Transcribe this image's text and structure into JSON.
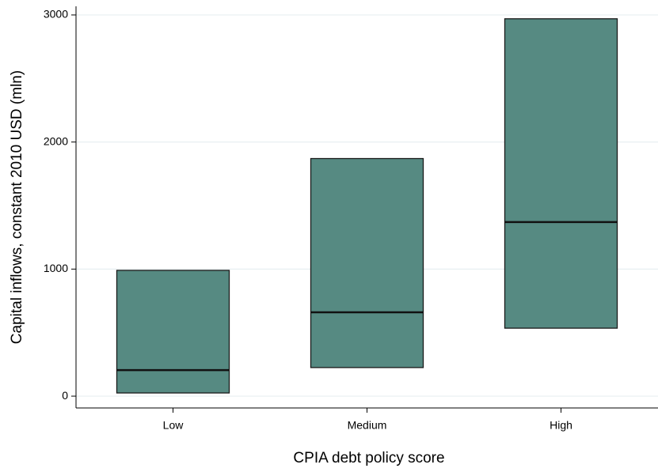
{
  "chart_data": {
    "type": "box",
    "x_label": "CPIA debt policy score",
    "y_label": "Capital inflows, constant 2010 USD (mln)",
    "categories": [
      "Low",
      "Medium",
      "High"
    ],
    "q1": [
      25,
      225,
      535
    ],
    "median": [
      205,
      660,
      1370
    ],
    "q3": [
      990,
      1870,
      2970
    ],
    "color": "#568a82",
    "ylim": [
      -93,
      3068
    ],
    "yticks": [
      0,
      1000,
      2000,
      3000
    ],
    "grid": true
  }
}
